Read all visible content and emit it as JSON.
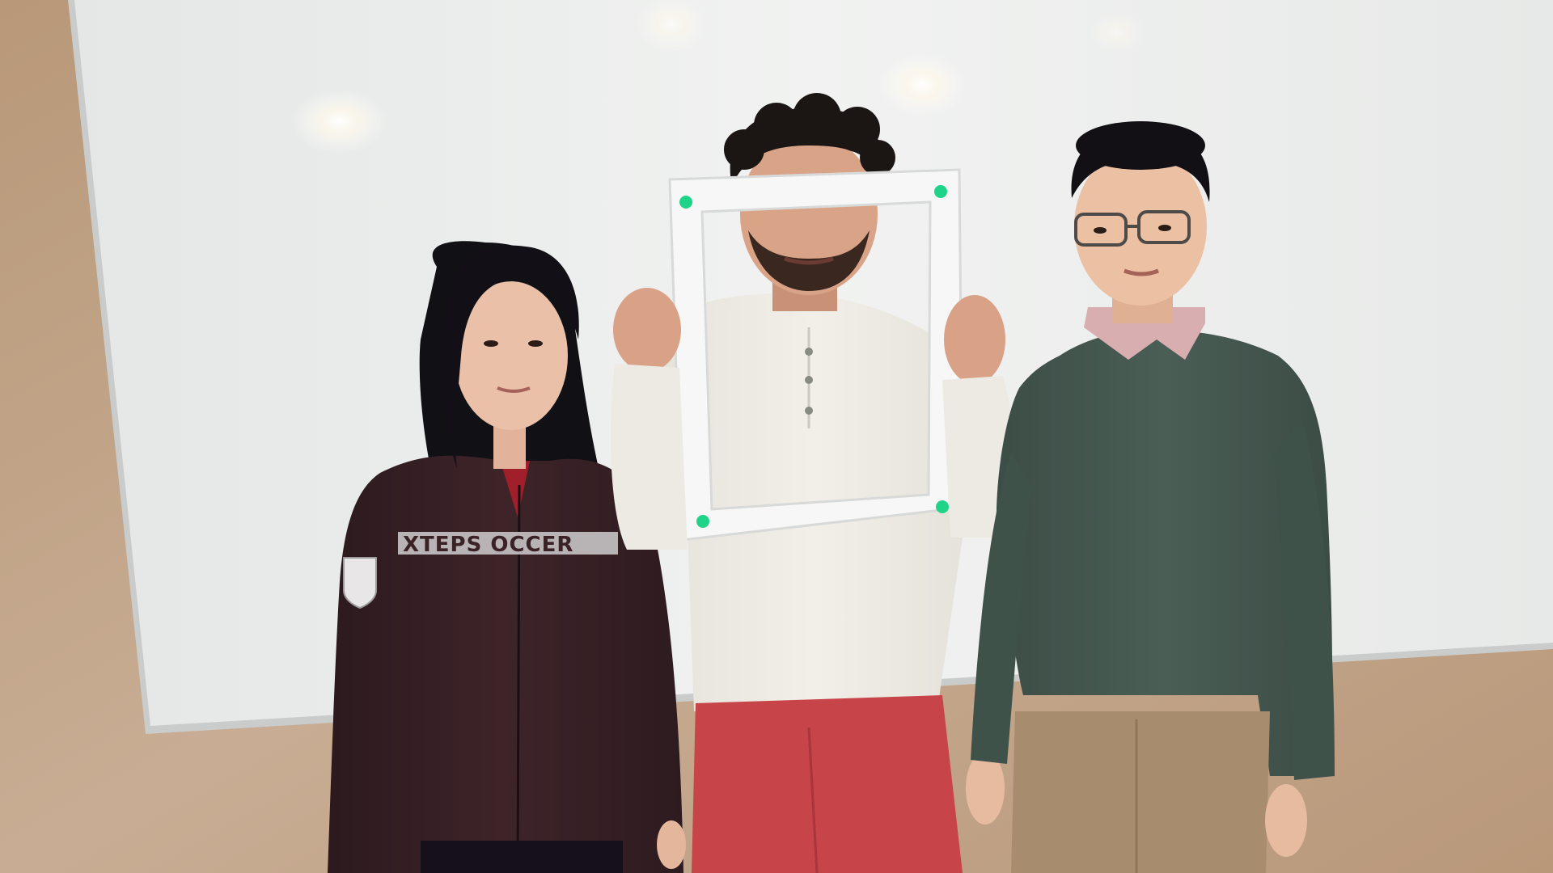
{
  "scene": {
    "jacket_print": "XTEPS OCCER",
    "colors": {
      "wall": "#c4a88e",
      "whiteboard": "#eceeed",
      "frame": "#f6f7f6",
      "frame_dots": "#1fd488",
      "jacket": "#3a2226",
      "sweater_left_shirt": "#efece4",
      "pants_red": "#c74448",
      "sweater_green": "#44574f",
      "collar_pink": "#d9aeb0",
      "khakis": "#a78d6e"
    }
  }
}
